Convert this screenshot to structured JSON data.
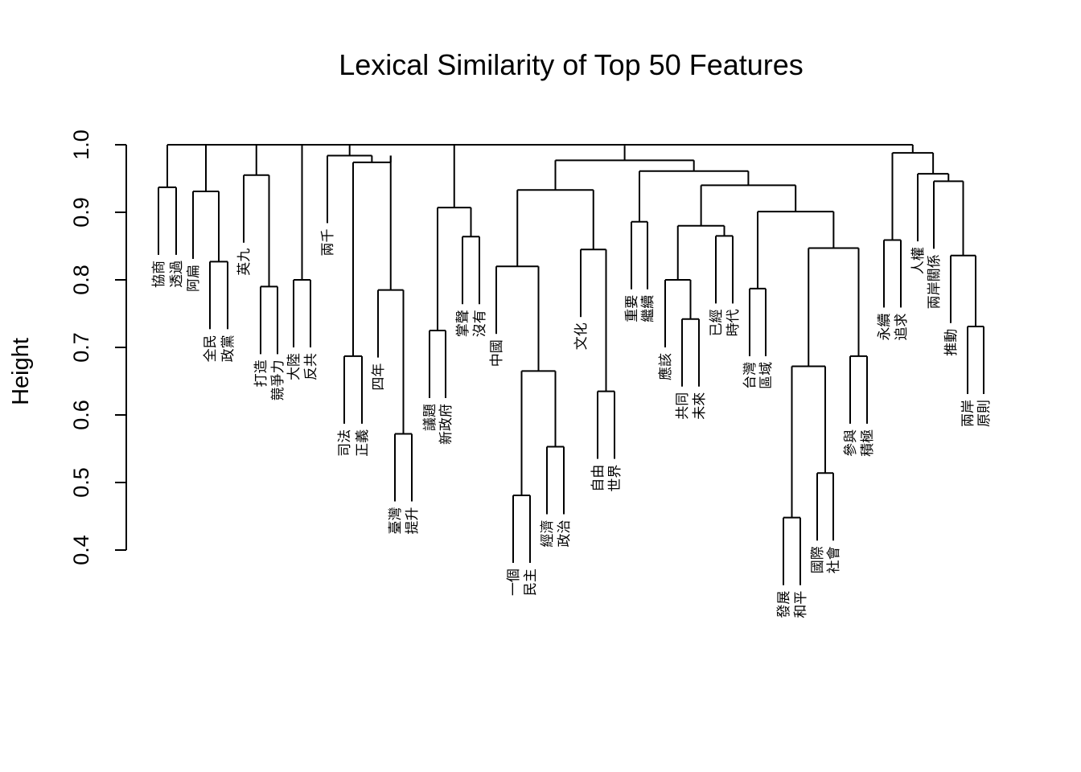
{
  "chart_data": {
    "type": "dendrogram",
    "title": "Lexical Similarity of Top 50 Features",
    "ylabel": "Height",
    "ylim": [
      0.4,
      1.0
    ],
    "yticks": [
      0.4,
      0.5,
      0.6,
      0.7,
      0.8,
      0.9,
      1.0
    ],
    "leaves": [
      "協商",
      "透過",
      "阿扁",
      "全民",
      "政黨",
      "英九",
      "打造",
      "競爭力",
      "大陸",
      "反共",
      "兩千",
      "司法",
      "正義",
      "四年",
      "臺灣",
      "提升",
      "議題",
      "新政府",
      "掌聲",
      "沒有",
      "中國",
      "一個",
      "民主",
      "經濟",
      "政治",
      "文化",
      "自由",
      "世界",
      "重要",
      "繼續",
      "應該",
      "共同",
      "未來",
      "已經",
      "時代",
      "台灣",
      "區域",
      "發展",
      "和平",
      "國際",
      "社會",
      "參與",
      "積極",
      "永續",
      "追求",
      "人權",
      "兩岸關係",
      "推動",
      "兩岸",
      "原則"
    ],
    "tree": [
      1.0,
      [
        [
          0.937,
          [
            "協商",
            "透過"
          ]
        ],
        [
          0.931,
          [
            "阿扁",
            [
              0.827,
              [
                "全民",
                "政黨"
              ]
            ]
          ]
        ],
        [
          0.955,
          [
            "英九",
            [
              0.79,
              [
                "打造",
                "競爭力"
              ]
            ]
          ]
        ],
        [
          0.8,
          [
            "大陸",
            "反共"
          ]
        ],
        [
          0.984,
          [
            "兩千",
            [
              0.974,
              [
                [
                  0.687,
                  [
                    "司法",
                    "正義"
                  ]
                ],
                [
                  0.984,
                  [
                    [
                      0.785,
                      [
                        "四年",
                        [
                          0.572,
                          [
                            "臺灣",
                            "提升"
                          ]
                        ]
                      ]
                    ]
                  ]
                ]
              ]
            ]
          ]
        ],
        [
          1.0,
          [
            [
              0.907,
              [
                [
                  0.725,
                  [
                    "議題",
                    "新政府"
                  ]
                ],
                [
                  0.864,
                  [
                    "掌聲",
                    "沒有"
                  ]
                ]
              ]
            ]
          ]
        ],
        [
          0.998,
          [
            [
              0.977,
              [
                [
                  0.933,
                  [
                    [
                      0.82,
                      [
                        "中國",
                        [
                          0.665,
                          [
                            [
                              0.481,
                              [
                                "一個",
                                "民主"
                              ]
                            ],
                            [
                              0.553,
                              [
                                "經濟",
                                "政治"
                              ]
                            ]
                          ]
                        ]
                      ]
                    ],
                    [
                      0.845,
                      [
                        "文化",
                        [
                          0.635,
                          [
                            "自由",
                            "世界"
                          ]
                        ]
                      ]
                    ]
                  ]
                ],
                [
                  0.961,
                  [
                    [
                      0.886,
                      [
                        "重要",
                        "繼續"
                      ]
                    ],
                    [
                      0.94,
                      [
                        [
                          0.88,
                          [
                            [
                              0.8,
                              [
                                "應該",
                                [
                                  0.742,
                                  [
                                    "共同",
                                    "未來"
                                  ]
                                ]
                              ]
                            ],
                            [
                              0.865,
                              [
                                "已經",
                                "時代"
                              ]
                            ]
                          ]
                        ],
                        [
                          0.901,
                          [
                            [
                              0.787,
                              [
                                "台灣",
                                "區域"
                              ]
                            ],
                            [
                              0.847,
                              [
                                [
                                  0.672,
                                  [
                                    [
                                      0.448,
                                      [
                                        "發展",
                                        "和平"
                                      ]
                                    ],
                                    [
                                      0.514,
                                      [
                                        "國際",
                                        "社會"
                                      ]
                                    ]
                                  ]
                                ],
                                [
                                  0.687,
                                  [
                                    "參與",
                                    "積極"
                                  ]
                                ]
                              ]
                            ]
                          ]
                        ]
                      ]
                    ]
                  ]
                ]
              ]
            ]
          ]
        ],
        [
          0.988,
          [
            [
              0.859,
              [
                "永續",
                "追求"
              ]
            ],
            [
              0.957,
              [
                [
                  "人權"
                ],
                [
                  0.946,
                  [
                    "兩岸關係",
                    [
                      0.836,
                      [
                        "推動",
                        [
                          0.731,
                          [
                            "兩岸",
                            "原則"
                          ]
                        ]
                      ]
                    ]
                  ]
                ]
              ]
            ]
          ]
        ]
      ]
    ]
  }
}
